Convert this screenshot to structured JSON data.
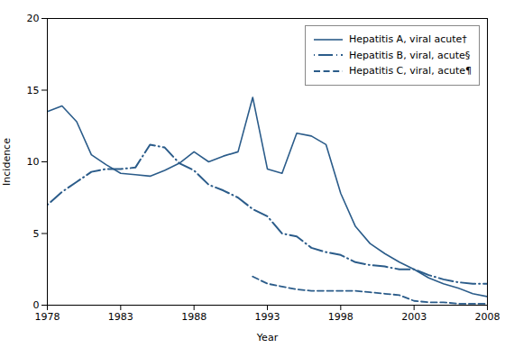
{
  "chart_data": {
    "type": "line",
    "xlabel": "Year",
    "ylabel": "Incidence",
    "xlim": [
      1978,
      2008
    ],
    "ylim": [
      0,
      20
    ],
    "xticks": [
      1978,
      1983,
      1988,
      1993,
      1998,
      2003,
      2008
    ],
    "yticks": [
      0,
      5,
      10,
      15,
      20
    ],
    "grid": false,
    "legend": "upper right",
    "x": [
      1978,
      1979,
      1980,
      1981,
      1982,
      1983,
      1984,
      1985,
      1986,
      1987,
      1988,
      1989,
      1990,
      1991,
      1992,
      1993,
      1994,
      1995,
      1996,
      1997,
      1998,
      1999,
      2000,
      2001,
      2002,
      2003,
      2004,
      2005,
      2006,
      2007,
      2008
    ],
    "series": [
      {
        "name": "Hepatitis A, viral acute†",
        "color": "#2B5C8A",
        "line_style": "solid",
        "values": [
          13.5,
          13.9,
          12.8,
          10.5,
          9.8,
          9.2,
          9.1,
          9.0,
          9.4,
          9.9,
          10.7,
          10.0,
          10.4,
          10.7,
          14.5,
          9.5,
          9.2,
          12.0,
          11.8,
          11.2,
          7.8,
          5.5,
          4.3,
          3.6,
          3.0,
          2.5,
          1.9,
          1.5,
          1.2,
          0.8,
          0.6
        ]
      },
      {
        "name": "Hepatitis B, viral, acute§",
        "color": "#2B5C8A",
        "line_style": "dashdot",
        "values": [
          7.0,
          7.9,
          8.6,
          9.3,
          9.5,
          9.5,
          9.6,
          11.2,
          11.0,
          9.9,
          9.4,
          8.4,
          8.0,
          7.5,
          6.7,
          6.2,
          5.0,
          4.8,
          4.0,
          3.7,
          3.5,
          3.0,
          2.8,
          2.7,
          2.5,
          2.5,
          2.1,
          1.8,
          1.6,
          1.5,
          1.5
        ]
      },
      {
        "name": "Hepatitis C, viral, acute¶",
        "color": "#2B5C8A",
        "line_style": "dashed",
        "values": [
          null,
          null,
          null,
          null,
          null,
          null,
          null,
          null,
          null,
          null,
          null,
          null,
          null,
          null,
          2.0,
          1.5,
          1.3,
          1.1,
          1.0,
          1.0,
          1.0,
          1.0,
          0.9,
          0.8,
          0.7,
          0.3,
          0.2,
          0.2,
          0.1,
          0.1,
          0.1
        ]
      }
    ]
  }
}
